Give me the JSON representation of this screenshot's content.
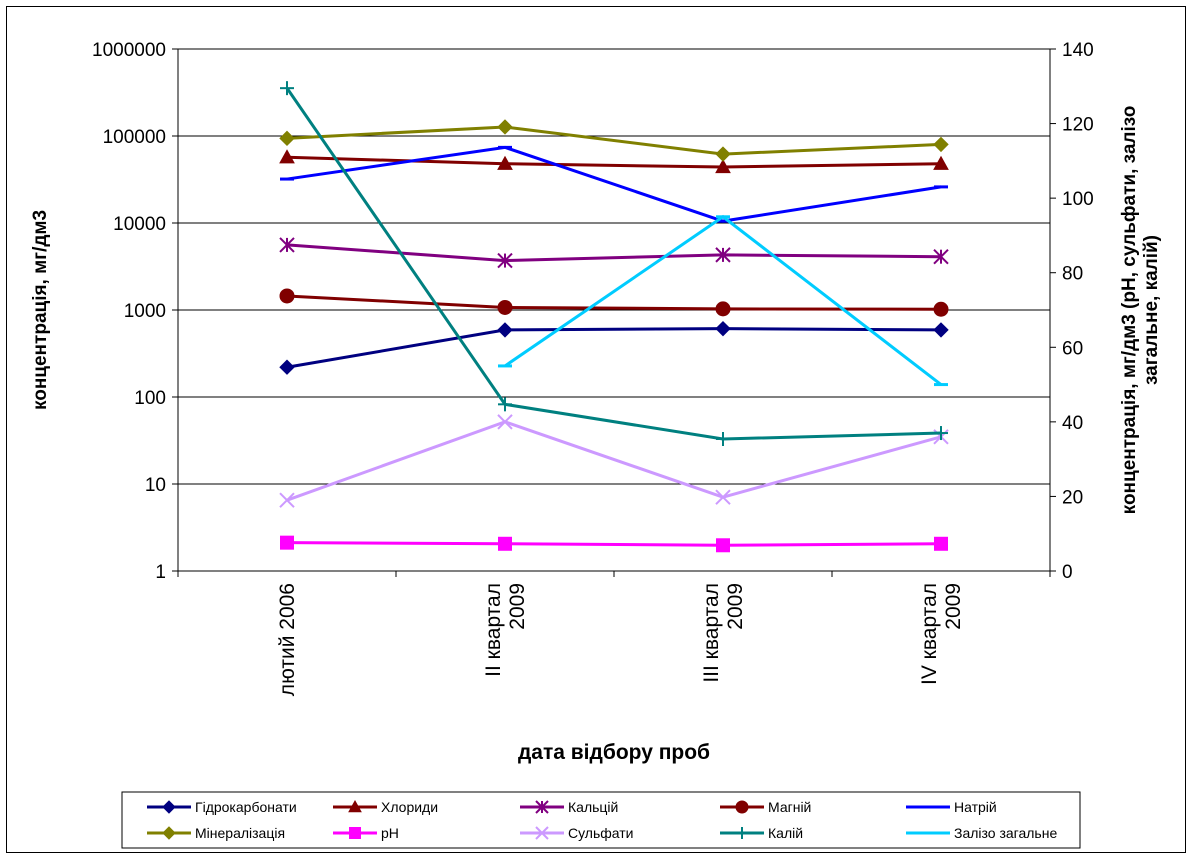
{
  "chart_data": {
    "type": "line",
    "categories": [
      "лютий 2006",
      "ІІ квартал 2009",
      "ІІІ квартал 2009",
      "IV квартал 2009"
    ],
    "category_lines": [
      [
        "лютий 2006"
      ],
      [
        "ІІ квартал",
        "2009"
      ],
      [
        "ІІІ квартал",
        "2009"
      ],
      [
        "IV квартал",
        "2009"
      ]
    ],
    "xlabel": "дата відбору проб",
    "ylabel": "концентрація, мг/дм3",
    "y2label_lines": [
      "концентрація, мг/дм3 (pH, сульфати, залізо",
      "загальне, калій)"
    ],
    "y_scale": "log",
    "ylim": [
      1,
      1000000
    ],
    "y_ticks": [
      "1",
      "10",
      "100",
      "1000",
      "10000",
      "100000",
      "1000000"
    ],
    "y2lim": [
      0,
      140
    ],
    "y2_ticks": [
      "0",
      "20",
      "40",
      "60",
      "80",
      "100",
      "120",
      "140"
    ],
    "grid": "horizontal major (left axis)",
    "legend_position": "bottom",
    "series": [
      {
        "name": "Гідрокарбонати",
        "axis": "left",
        "color": "#000080",
        "marker": "diamond",
        "values": [
          220,
          590,
          610,
          590
        ]
      },
      {
        "name": "Хлориди",
        "axis": "left",
        "color": "#800000",
        "marker": "triangle",
        "values": [
          57000,
          48000,
          44000,
          48000
        ]
      },
      {
        "name": "Кальцій",
        "axis": "left",
        "color": "#800080",
        "marker": "asterisk",
        "values": [
          5600,
          3700,
          4300,
          4100
        ]
      },
      {
        "name": "Магній",
        "axis": "left",
        "color": "#800000",
        "marker": "circle",
        "values": [
          1450,
          1070,
          1030,
          1020
        ]
      },
      {
        "name": "Натрій",
        "axis": "left",
        "color": "#0000FF",
        "marker": "dash",
        "values": [
          32000,
          74000,
          10500,
          26000
        ]
      },
      {
        "name": "Мінералізація",
        "axis": "left",
        "color": "#808000",
        "marker": "diamond",
        "values": [
          94000,
          127000,
          62000,
          80000
        ]
      },
      {
        "name": "pH",
        "axis": "right",
        "color": "#FF00FF",
        "marker": "square",
        "values": [
          7.6,
          7.3,
          6.9,
          7.3
        ]
      },
      {
        "name": "Сульфати",
        "axis": "right",
        "color": "#CC99FF",
        "marker": "x",
        "values": [
          19,
          40,
          19.8,
          36
        ]
      },
      {
        "name": "Калій",
        "axis": "right",
        "color": "#008080",
        "marker": "plus",
        "values": [
          129.5,
          44.7,
          35.4,
          37
        ]
      },
      {
        "name": "Залізо загальне",
        "axis": "right",
        "color": "#00CCFF",
        "marker": "dash",
        "values": [
          null,
          55,
          95,
          50
        ]
      }
    ]
  }
}
